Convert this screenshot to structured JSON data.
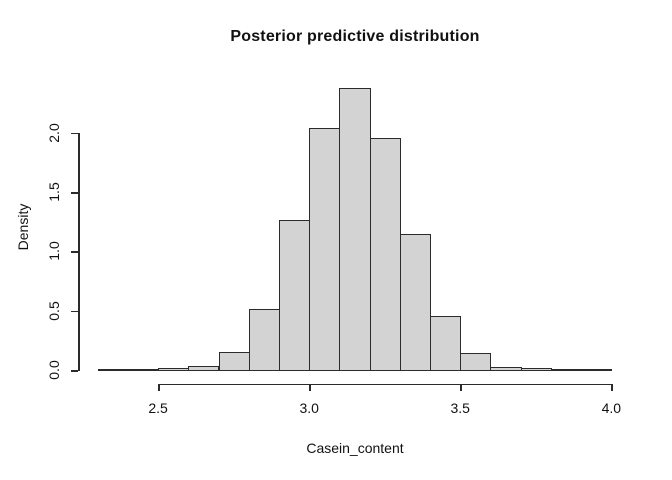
{
  "title": "Posterior predictive distribution",
  "colors": {
    "background": "#ffffff",
    "bar_fill": "#d3d3d3",
    "bar_border": "#2b2b2b",
    "axis": "#2b2b2b",
    "text": "#111111"
  },
  "chart_data": {
    "type": "bar",
    "subtype": "histogram",
    "title": "Posterior predictive distribution",
    "xlabel": "Casein_content",
    "ylabel": "Density",
    "bin_start": 2.3,
    "bin_width": 0.1,
    "bin_edges": [
      2.3,
      2.4,
      2.5,
      2.6,
      2.7,
      2.8,
      2.9,
      3.0,
      3.1,
      3.2,
      3.3,
      3.4,
      3.5,
      3.6,
      3.7,
      3.8,
      3.9,
      4.0
    ],
    "densities": [
      0.002,
      0.004,
      0.01,
      0.025,
      0.145,
      0.51,
      1.26,
      2.03,
      2.37,
      1.95,
      1.14,
      0.445,
      0.135,
      0.02,
      0.005,
      0.002,
      0.002
    ],
    "x_ticks": [
      2.5,
      3.0,
      3.5,
      4.0
    ],
    "x_tick_labels": [
      "2.5",
      "3.0",
      "3.5",
      "4.0"
    ],
    "y_ticks": [
      0.0,
      0.5,
      1.0,
      1.5,
      2.0
    ],
    "y_tick_labels": [
      "0.0",
      "0.5",
      "1.0",
      "1.5",
      "2.0"
    ],
    "xlim": [
      2.3,
      4.0
    ],
    "ylim": [
      0,
      2.4
    ],
    "grid": false,
    "legend_position": "none"
  }
}
